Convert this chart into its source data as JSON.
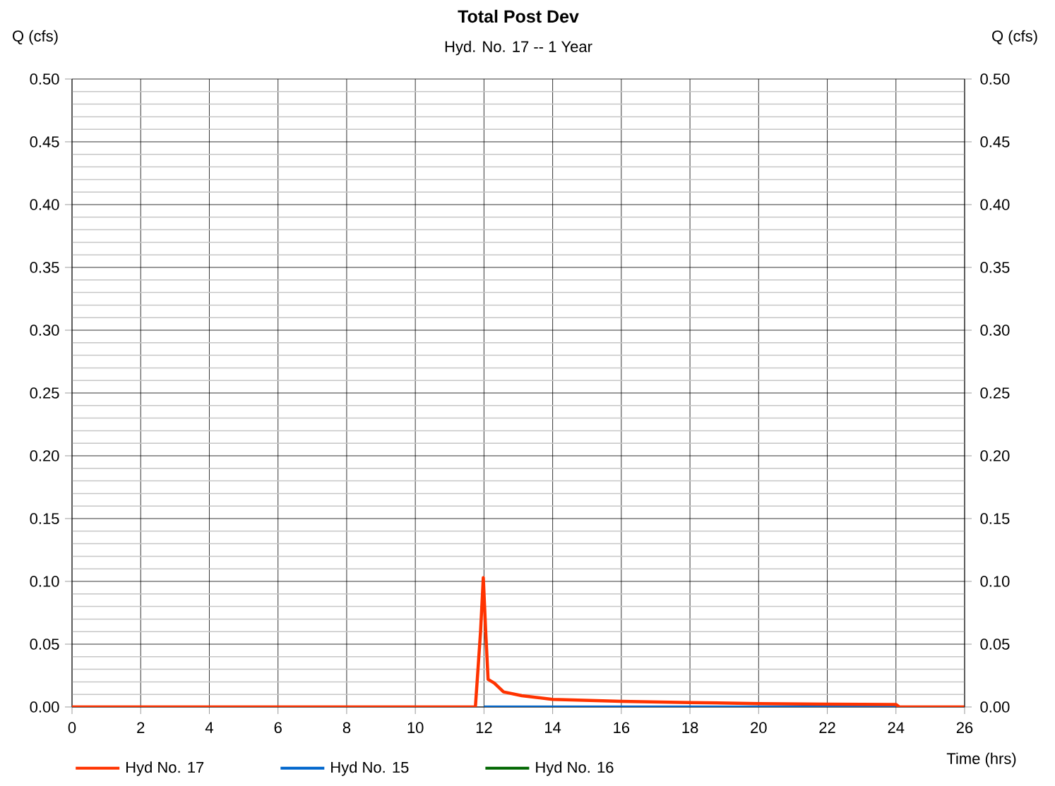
{
  "chart_data": {
    "type": "line",
    "title": "Total Post Dev",
    "subtitle": "Hyd. No. 17 -- 1 Year",
    "xlabel": "Time (hrs)",
    "ylabel": "Q (cfs)",
    "y2label": "Q (cfs)",
    "xlim": [
      0,
      26
    ],
    "xticks": [
      0,
      2,
      4,
      6,
      8,
      10,
      12,
      14,
      16,
      18,
      20,
      22,
      24,
      26
    ],
    "ylim": [
      0,
      0.5
    ],
    "yticks": [
      {
        "value": 0,
        "label": "0.00"
      },
      {
        "value": 0.05,
        "label": "0.05"
      },
      {
        "value": 0.1,
        "label": "0.10"
      },
      {
        "value": 0.15,
        "label": "0.15"
      },
      {
        "value": 0.2,
        "label": "0.20"
      },
      {
        "value": 0.25,
        "label": "0.25"
      },
      {
        "value": 0.3,
        "label": "0.30"
      },
      {
        "value": 0.35,
        "label": "0.35"
      },
      {
        "value": 0.4,
        "label": "0.40"
      },
      {
        "value": 0.45,
        "label": "0.45"
      },
      {
        "value": 0.5,
        "label": "0.50"
      }
    ],
    "y2lim": [
      0,
      0.5
    ],
    "y2ticks": [
      {
        "value": 0,
        "label": "0.00"
      },
      {
        "value": 0.05,
        "label": "0.05"
      },
      {
        "value": 0.1,
        "label": "0.10"
      },
      {
        "value": 0.15,
        "label": "0.15"
      },
      {
        "value": 0.2,
        "label": "0.20"
      },
      {
        "value": 0.25,
        "label": "0.25"
      },
      {
        "value": 0.3,
        "label": "0.30"
      },
      {
        "value": 0.35,
        "label": "0.35"
      },
      {
        "value": 0.4,
        "label": "0.40"
      },
      {
        "value": 0.45,
        "label": "0.45"
      },
      {
        "value": 0.5,
        "label": "0.50"
      }
    ],
    "grid": true,
    "legend": "bottom",
    "marker": "none",
    "line_style": "solid",
    "series": [
      {
        "name": "Hyd No. 15",
        "color": "#0066cc",
        "x": [
          12,
          24
        ],
        "values": [
          0,
          0
        ]
      },
      {
        "name": "Hyd No. 16",
        "color": "#006600"
      },
      {
        "name": "Hyd No. 17",
        "color": "#ff3300",
        "x": [
          0,
          11.75,
          11.9,
          11.98,
          12.05,
          12.12,
          12.3,
          12.57,
          13.1,
          14,
          16,
          18,
          20,
          22,
          24,
          24.1,
          26
        ],
        "values": [
          0,
          0,
          0.06,
          0.103,
          0.06,
          0.022,
          0.019,
          0.012,
          0.009,
          0.006,
          0.0045,
          0.0035,
          0.0027,
          0.0023,
          0.002,
          0,
          0
        ]
      }
    ]
  }
}
